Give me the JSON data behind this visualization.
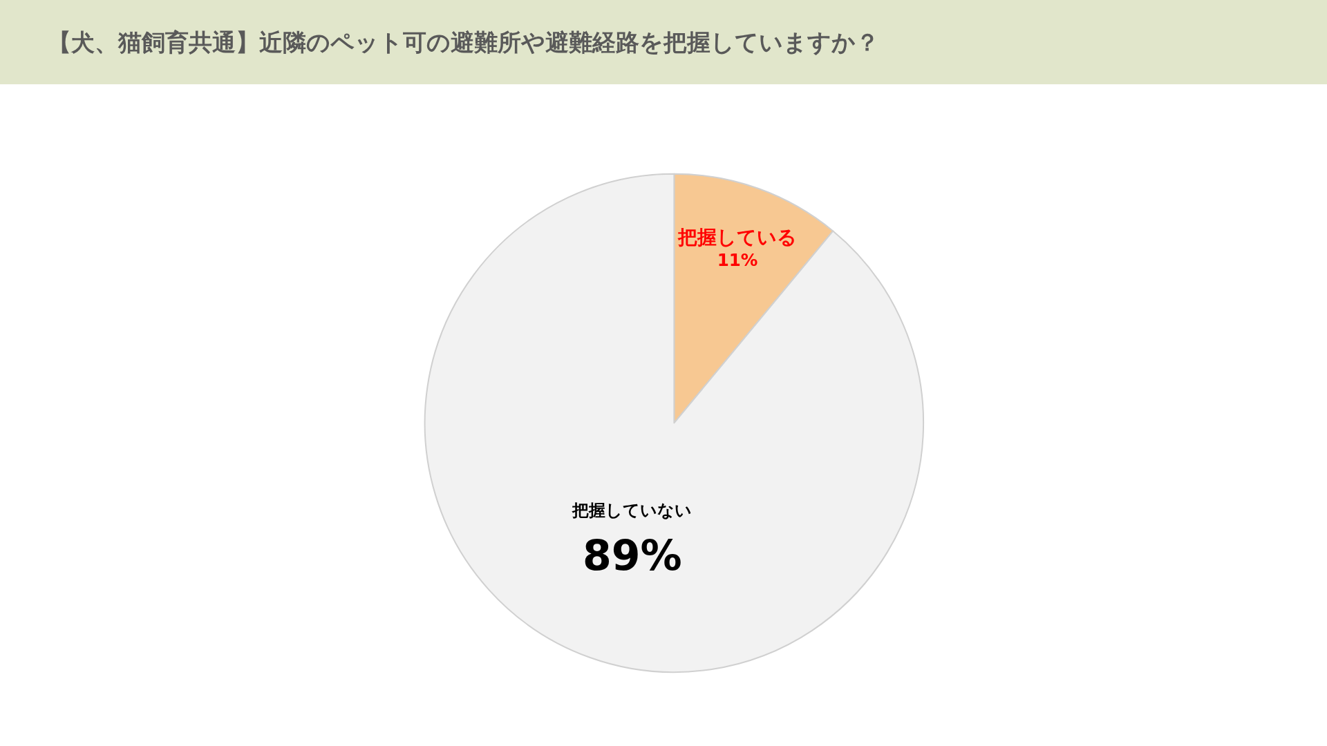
{
  "chart_data": {
    "type": "pie",
    "title": "【犬、猫飼育共通】近隣のペット可の避難所や避難経路を把握していますか？",
    "categories": [
      "把握している",
      "把握していない"
    ],
    "values": [
      11,
      89
    ],
    "value_labels": [
      "11%",
      "89%"
    ],
    "colors": [
      "#f7c892",
      "#f2f2f2"
    ],
    "legend": false
  }
}
